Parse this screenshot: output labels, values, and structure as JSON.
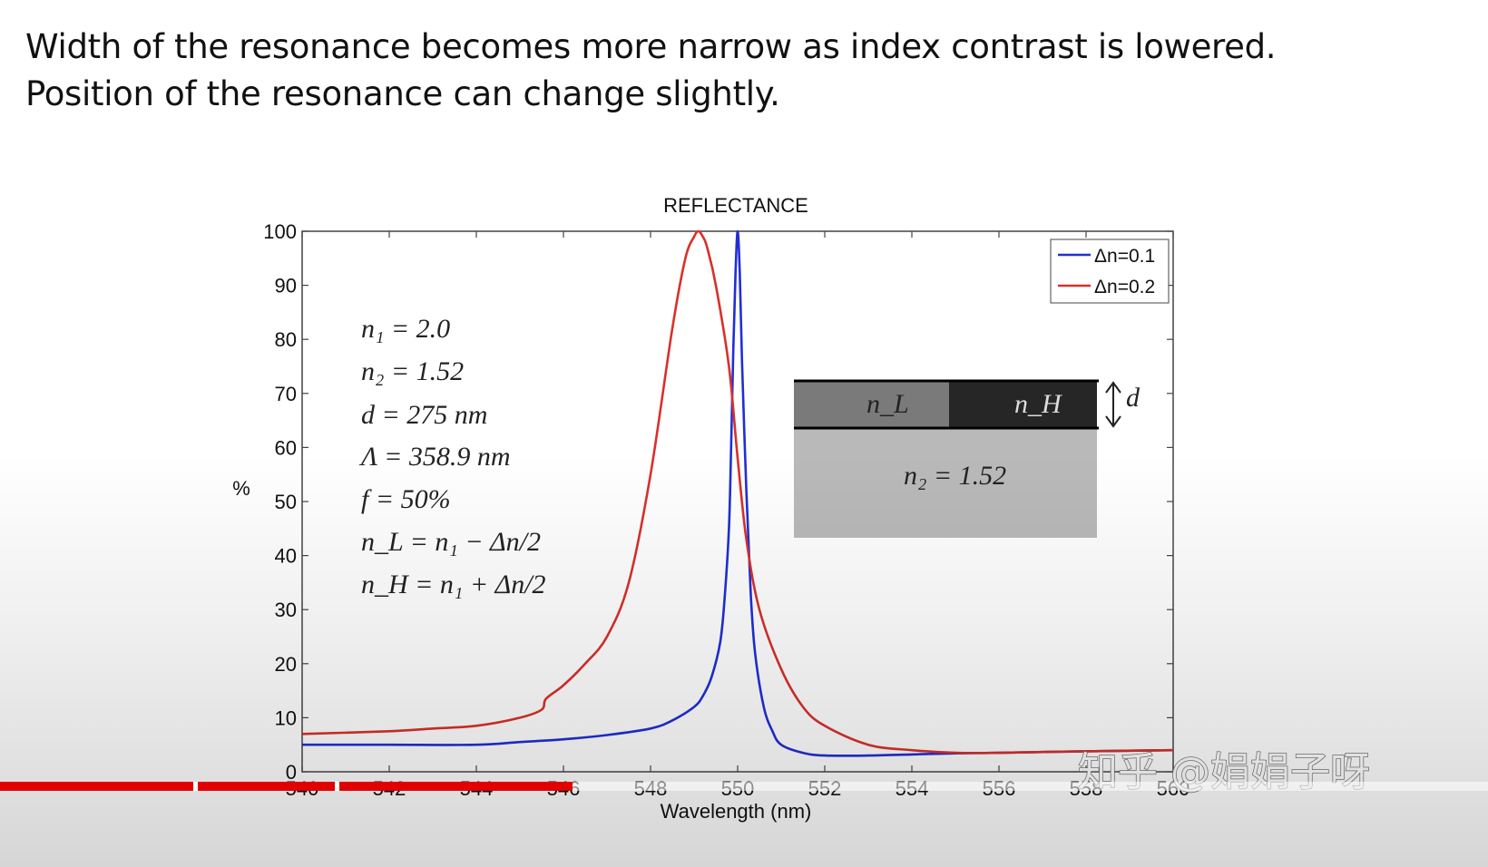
{
  "slide": {
    "line1": "Width of the resonance becomes more narrow as index contrast is lowered.",
    "line2": "Position of the resonance can change slightly."
  },
  "chart_data": {
    "type": "line",
    "title": "REFLECTANCE",
    "xlabel": "Wavelength (nm)",
    "ylabel": "%",
    "xlim": [
      540,
      560
    ],
    "ylim": [
      0,
      100
    ],
    "xticks": [
      540,
      542,
      544,
      546,
      548,
      550,
      552,
      554,
      556,
      558,
      560
    ],
    "yticks": [
      0,
      10,
      20,
      30,
      40,
      50,
      60,
      70,
      80,
      90,
      100
    ],
    "grid": false,
    "legend_position": "top-right",
    "series": [
      {
        "name": "Δn=0.1",
        "color": "#1f2fd6",
        "x": [
          540,
          542,
          544,
          545,
          546,
          547,
          548,
          548.5,
          549,
          549.2,
          549.4,
          549.6,
          549.7,
          549.8,
          549.85,
          549.9,
          549.95,
          550,
          550.05,
          550.1,
          550.2,
          550.3,
          550.4,
          550.6,
          550.8,
          551,
          551.5,
          552,
          553,
          554,
          555,
          556,
          558,
          560
        ],
        "y": [
          5,
          5,
          5,
          5.5,
          6,
          6.8,
          8,
          9.5,
          12,
          14,
          17.5,
          24,
          32,
          45,
          60,
          78,
          92,
          100,
          92,
          76,
          52,
          33,
          22,
          12,
          7.5,
          5,
          3.5,
          3,
          3,
          3.2,
          3.4,
          3.5,
          3.8,
          4
        ]
      },
      {
        "name": "Δn=0.2",
        "color": "#d9302a",
        "x": [
          540,
          542,
          543,
          544,
          545,
          545.5,
          545.6,
          546,
          546.5,
          547,
          547.5,
          548,
          548.5,
          548.8,
          549,
          549.1,
          549.2,
          549.3,
          549.5,
          549.8,
          550,
          550.2,
          550.5,
          551,
          551.5,
          552,
          553,
          554,
          555,
          556,
          558,
          560
        ],
        "y": [
          7,
          7.5,
          8,
          8.5,
          10,
          11.5,
          13.5,
          16,
          20,
          25,
          35,
          55,
          82,
          95,
          99,
          100,
          99,
          97,
          90,
          75,
          58,
          43,
          30,
          19,
          12,
          8.5,
          5,
          4,
          3.5,
          3.5,
          3.8,
          4
        ]
      }
    ],
    "annotations": {
      "params": [
        "n₁ = 2.0",
        "n₂ = 1.52",
        "d = 275 nm",
        "Λ = 358.9 nm",
        "f = 50%",
        "n_L = n₁ − Δn/2",
        "n_H = n₁ + Δn/2"
      ],
      "inset": {
        "layer_low": "n_L",
        "layer_high": "n_H",
        "thickness": "d",
        "substrate": "n₂ = 1.52"
      }
    }
  },
  "video": {
    "watermark": "知乎 @娟娟子呀",
    "progress": 0.385,
    "segments": [
      0.13,
      0.225,
      0.385
    ]
  }
}
